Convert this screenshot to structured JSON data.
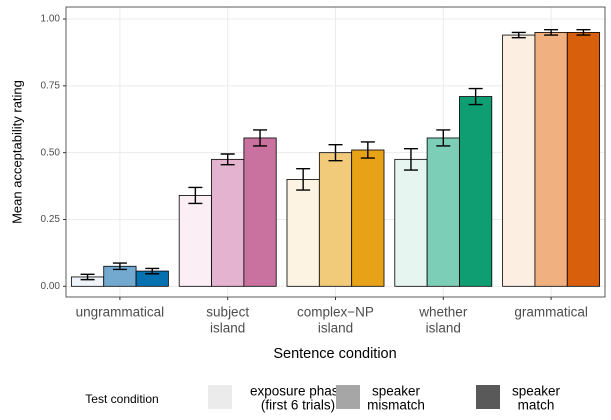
{
  "chart_data": {
    "type": "bar",
    "x_label": "Sentence condition",
    "y_label": "Mean acceptability rating",
    "categories": [
      [
        "ungrammatical"
      ],
      [
        "subject",
        "island"
      ],
      [
        "complex−NP",
        "island"
      ],
      [
        "whether",
        "island"
      ],
      [
        "grammatical"
      ]
    ],
    "ylim": [
      -0.04,
      1.045
    ],
    "yticks": [
      {
        "value": 0,
        "label": "0.00"
      },
      {
        "value": 0.25,
        "label": "0.25"
      },
      {
        "value": 0.5,
        "label": "0.50"
      },
      {
        "value": 0.75,
        "label": "0.75"
      },
      {
        "value": 1,
        "label": "1.00"
      }
    ],
    "grid": true,
    "legend_title": "Test condition",
    "series": [
      {
        "name": [
          "exposure phase",
          "(first 6 trials)"
        ],
        "color": "#ebebeb",
        "colors": [
          "#eef4fa",
          "#fbeef4",
          "#fdf3e3",
          "#e6f5ef",
          "#fdeee2"
        ],
        "values": [
          0.035,
          0.34,
          0.4,
          0.475,
          0.94
        ],
        "errors": [
          0.01,
          0.03,
          0.04,
          0.04,
          0.01
        ]
      },
      {
        "name": [
          "speaker",
          "mismatch"
        ],
        "color": "#a6a6a6",
        "colors": [
          "#74a9cf",
          "#e3b3d0",
          "#f1ca7a",
          "#7ccfb6",
          "#f0b080"
        ],
        "values": [
          0.075,
          0.475,
          0.5,
          0.555,
          0.95
        ],
        "errors": [
          0.012,
          0.02,
          0.03,
          0.03,
          0.01
        ]
      },
      {
        "name": [
          "speaker",
          "match"
        ],
        "color": "#595959",
        "colors": [
          "#0571b0",
          "#c9729f",
          "#e8a218",
          "#0e9e72",
          "#d8600c"
        ],
        "values": [
          0.057,
          0.555,
          0.51,
          0.71,
          0.95
        ],
        "errors": [
          0.01,
          0.03,
          0.03,
          0.03,
          0.01
        ]
      }
    ]
  }
}
